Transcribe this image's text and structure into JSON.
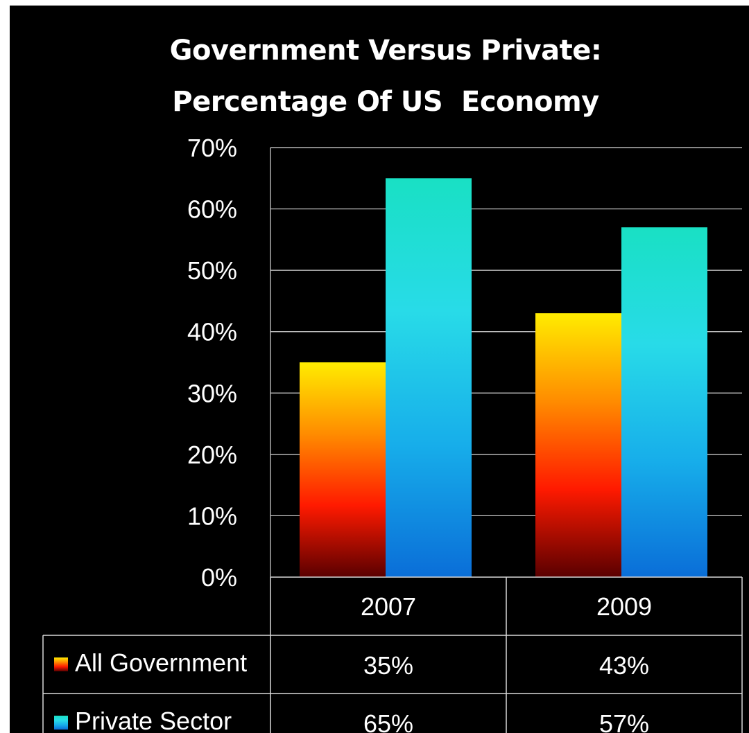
{
  "chart_data": {
    "type": "bar",
    "title_lines": [
      "Government Versus Private:",
      "Percentage Of US  Economy"
    ],
    "categories": [
      "2007",
      "2009"
    ],
    "series": [
      {
        "name": "All Government",
        "values": [
          35,
          43
        ],
        "labels": [
          "35%",
          "43%"
        ],
        "gradient": [
          "#ffec00",
          "#ff8c00",
          "#ff1a00",
          "#5a0000"
        ]
      },
      {
        "name": "Private Sector",
        "values": [
          65,
          57
        ],
        "labels": [
          "65%",
          "57%"
        ],
        "gradient": [
          "#19e0c4",
          "#28dbe8",
          "#17aeea",
          "#0a6ed8"
        ]
      }
    ],
    "yticks": [
      "0%",
      "10%",
      "20%",
      "30%",
      "40%",
      "50%",
      "60%",
      "70%"
    ],
    "ylim": [
      0,
      70
    ],
    "grid": true,
    "legend": "data-table-below",
    "colors": {
      "background": "#000000",
      "text": "#ffffff",
      "grid": "#d9d9d9"
    }
  }
}
